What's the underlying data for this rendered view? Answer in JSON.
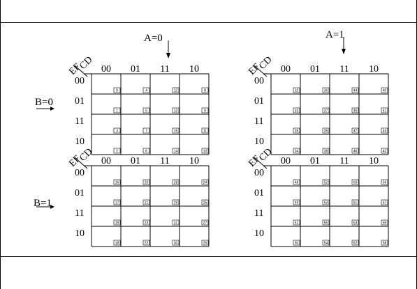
{
  "labels": {
    "a0": "A=0",
    "a1": "A=1",
    "b0": "B=0",
    "b1": "B=1",
    "cd": "CD",
    "ef": "EF"
  },
  "col_headers": [
    "00",
    "01",
    "11",
    "10"
  ],
  "row_headers": [
    "00",
    "01",
    "11",
    "10"
  ],
  "maps": [
    {
      "id": "a0b0",
      "cells": [
        [
          "0",
          "4",
          "12",
          "8"
        ],
        [
          "1",
          "5",
          "13",
          "9"
        ],
        [
          "3",
          "7",
          "15",
          "11"
        ],
        [
          "2",
          "6",
          "14",
          "10"
        ]
      ]
    },
    {
      "id": "a1b0",
      "cells": [
        [
          "32",
          "36",
          "44",
          "40"
        ],
        [
          "33",
          "37",
          "45",
          "41"
        ],
        [
          "35",
          "39",
          "47",
          "43"
        ],
        [
          "34",
          "38",
          "46",
          "42"
        ]
      ]
    },
    {
      "id": "a0b1",
      "cells": [
        [
          "16",
          "20",
          "28",
          "24"
        ],
        [
          "17",
          "21",
          "29",
          "25"
        ],
        [
          "19",
          "23",
          "31",
          "27"
        ],
        [
          "18",
          "22",
          "30",
          "26"
        ]
      ]
    },
    {
      "id": "a1b1",
      "cells": [
        [
          "48",
          "52",
          "60",
          "56"
        ],
        [
          "49",
          "53",
          "61",
          "57"
        ],
        [
          "51",
          "55",
          "63",
          "59"
        ],
        [
          "50",
          "54",
          "62",
          "58"
        ]
      ]
    }
  ]
}
